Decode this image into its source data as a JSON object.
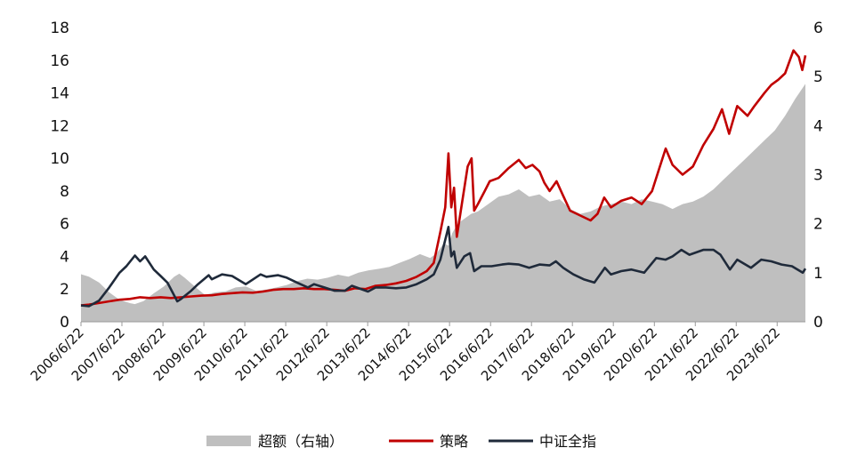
{
  "chart_data": {
    "type": "line",
    "title": "",
    "xlabel": "",
    "ylabel_left": "",
    "ylabel_right": "",
    "ylim_left": [
      0,
      18
    ],
    "ylim_right": [
      0,
      6
    ],
    "left_ticks": [
      "0",
      "2",
      "4",
      "6",
      "8",
      "10",
      "12",
      "14",
      "16",
      "18"
    ],
    "right_ticks": [
      "0",
      "1",
      "2",
      "3",
      "4",
      "5",
      "6"
    ],
    "x_tick_labels": [
      "2006/6/22",
      "2007/6/22",
      "2008/6/22",
      "2009/6/22",
      "2010/6/22",
      "2011/6/22",
      "2012/6/22",
      "2013/6/22",
      "2014/6/22",
      "2015/6/22",
      "2016/6/22",
      "2017/6/22",
      "2018/6/22",
      "2019/6/22",
      "2020/6/22",
      "2021/6/22",
      "2022/6/22",
      "2023/6/22"
    ],
    "x_range": [
      "2006-06-22",
      "2024-02-29"
    ],
    "grid": false,
    "legend_position": "bottom-center",
    "colors": {
      "excess": "#bfbfbf",
      "strategy": "#c00000",
      "index": "#1f2a3a"
    },
    "series": [
      {
        "name": "超额（右轴）",
        "kind": "area",
        "axis": "right",
        "points": [
          [
            "2006-06-22",
            0.97
          ],
          [
            "2006-09-01",
            0.92
          ],
          [
            "2006-12-01",
            0.8
          ],
          [
            "2007-03-01",
            0.6
          ],
          [
            "2007-06-01",
            0.45
          ],
          [
            "2007-09-01",
            0.38
          ],
          [
            "2007-10-15",
            0.36
          ],
          [
            "2008-01-01",
            0.42
          ],
          [
            "2008-04-01",
            0.58
          ],
          [
            "2008-07-01",
            0.72
          ],
          [
            "2008-10-01",
            0.92
          ],
          [
            "2008-11-15",
            0.98
          ],
          [
            "2009-01-01",
            0.9
          ],
          [
            "2009-04-01",
            0.72
          ],
          [
            "2009-07-01",
            0.55
          ],
          [
            "2009-10-01",
            0.6
          ],
          [
            "2010-01-01",
            0.62
          ],
          [
            "2010-04-01",
            0.7
          ],
          [
            "2010-07-01",
            0.72
          ],
          [
            "2010-10-01",
            0.63
          ],
          [
            "2011-01-01",
            0.66
          ],
          [
            "2011-04-01",
            0.7
          ],
          [
            "2011-07-01",
            0.75
          ],
          [
            "2011-10-01",
            0.83
          ],
          [
            "2012-01-01",
            0.88
          ],
          [
            "2012-04-01",
            0.86
          ],
          [
            "2012-07-01",
            0.9
          ],
          [
            "2012-10-01",
            0.96
          ],
          [
            "2013-01-01",
            0.92
          ],
          [
            "2013-04-01",
            1.0
          ],
          [
            "2013-07-01",
            1.05
          ],
          [
            "2013-10-01",
            1.08
          ],
          [
            "2014-01-01",
            1.12
          ],
          [
            "2014-04-01",
            1.2
          ],
          [
            "2014-07-01",
            1.28
          ],
          [
            "2014-10-01",
            1.38
          ],
          [
            "2015-01-01",
            1.3
          ],
          [
            "2015-03-01",
            1.4
          ],
          [
            "2015-05-01",
            1.6
          ],
          [
            "2015-06-15",
            1.55
          ],
          [
            "2015-07-15",
            1.8
          ],
          [
            "2015-09-01",
            2.0
          ],
          [
            "2015-11-01",
            2.1
          ],
          [
            "2016-01-01",
            2.2
          ],
          [
            "2016-03-01",
            2.25
          ],
          [
            "2016-06-01",
            2.4
          ],
          [
            "2016-09-01",
            2.55
          ],
          [
            "2016-12-01",
            2.6
          ],
          [
            "2017-03-01",
            2.7
          ],
          [
            "2017-06-01",
            2.55
          ],
          [
            "2017-09-01",
            2.6
          ],
          [
            "2017-12-01",
            2.45
          ],
          [
            "2018-03-01",
            2.5
          ],
          [
            "2018-06-01",
            2.3
          ],
          [
            "2018-09-01",
            2.2
          ],
          [
            "2018-12-01",
            2.25
          ],
          [
            "2019-03-01",
            2.35
          ],
          [
            "2019-06-01",
            2.4
          ],
          [
            "2019-09-01",
            2.45
          ],
          [
            "2019-12-01",
            2.4
          ],
          [
            "2020-03-01",
            2.5
          ],
          [
            "2020-06-01",
            2.45
          ],
          [
            "2020-09-01",
            2.4
          ],
          [
            "2020-12-01",
            2.3
          ],
          [
            "2021-03-01",
            2.4
          ],
          [
            "2021-06-01",
            2.45
          ],
          [
            "2021-09-01",
            2.55
          ],
          [
            "2021-12-01",
            2.7
          ],
          [
            "2022-03-01",
            2.9
          ],
          [
            "2022-06-01",
            3.1
          ],
          [
            "2022-09-01",
            3.3
          ],
          [
            "2022-12-01",
            3.5
          ],
          [
            "2023-03-01",
            3.7
          ],
          [
            "2023-06-01",
            3.9
          ],
          [
            "2023-09-01",
            4.2
          ],
          [
            "2023-12-01",
            4.55
          ],
          [
            "2024-02-29",
            4.85
          ]
        ]
      },
      {
        "name": "策略",
        "kind": "line",
        "axis": "left",
        "points": [
          [
            "2006-06-22",
            1.0
          ],
          [
            "2006-09-01",
            1.05
          ],
          [
            "2006-12-01",
            1.15
          ],
          [
            "2007-03-01",
            1.25
          ],
          [
            "2007-06-01",
            1.35
          ],
          [
            "2007-09-01",
            1.4
          ],
          [
            "2007-12-01",
            1.5
          ],
          [
            "2008-03-01",
            1.45
          ],
          [
            "2008-06-01",
            1.5
          ],
          [
            "2008-09-01",
            1.45
          ],
          [
            "2008-12-01",
            1.5
          ],
          [
            "2009-03-01",
            1.55
          ],
          [
            "2009-06-01",
            1.6
          ],
          [
            "2009-09-01",
            1.62
          ],
          [
            "2009-12-01",
            1.7
          ],
          [
            "2010-03-01",
            1.75
          ],
          [
            "2010-06-01",
            1.8
          ],
          [
            "2010-09-01",
            1.78
          ],
          [
            "2010-12-01",
            1.85
          ],
          [
            "2011-03-01",
            1.95
          ],
          [
            "2011-06-01",
            2.0
          ],
          [
            "2011-09-01",
            2.0
          ],
          [
            "2011-12-01",
            2.05
          ],
          [
            "2012-03-01",
            2.0
          ],
          [
            "2012-06-01",
            2.0
          ],
          [
            "2012-09-01",
            1.95
          ],
          [
            "2012-12-01",
            1.9
          ],
          [
            "2013-03-01",
            2.05
          ],
          [
            "2013-06-01",
            2.0
          ],
          [
            "2013-09-01",
            2.2
          ],
          [
            "2013-12-01",
            2.25
          ],
          [
            "2014-03-01",
            2.35
          ],
          [
            "2014-06-01",
            2.5
          ],
          [
            "2014-09-01",
            2.75
          ],
          [
            "2014-12-01",
            3.1
          ],
          [
            "2015-02-01",
            3.6
          ],
          [
            "2015-04-01",
            5.5
          ],
          [
            "2015-05-15",
            7.0
          ],
          [
            "2015-06-12",
            10.3
          ],
          [
            "2015-07-08",
            7.0
          ],
          [
            "2015-08-01",
            8.2
          ],
          [
            "2015-08-26",
            5.2
          ],
          [
            "2015-10-01",
            6.8
          ],
          [
            "2015-12-01",
            9.5
          ],
          [
            "2016-01-05",
            10.0
          ],
          [
            "2016-01-28",
            6.8
          ],
          [
            "2016-03-01",
            7.2
          ],
          [
            "2016-05-01",
            8.0
          ],
          [
            "2016-06-15",
            8.6
          ],
          [
            "2016-09-01",
            8.8
          ],
          [
            "2016-12-01",
            9.4
          ],
          [
            "2017-03-01",
            9.9
          ],
          [
            "2017-05-01",
            9.4
          ],
          [
            "2017-07-01",
            9.6
          ],
          [
            "2017-09-01",
            9.2
          ],
          [
            "2017-10-15",
            8.5
          ],
          [
            "2017-12-01",
            8.0
          ],
          [
            "2018-02-01",
            8.6
          ],
          [
            "2018-04-01",
            7.7
          ],
          [
            "2018-06-01",
            6.8
          ],
          [
            "2018-09-01",
            6.5
          ],
          [
            "2018-12-01",
            6.2
          ],
          [
            "2019-02-01",
            6.6
          ],
          [
            "2019-04-01",
            7.6
          ],
          [
            "2019-06-01",
            7.0
          ],
          [
            "2019-09-01",
            7.4
          ],
          [
            "2019-12-01",
            7.6
          ],
          [
            "2020-03-01",
            7.2
          ],
          [
            "2020-06-01",
            8.0
          ],
          [
            "2020-08-01",
            9.3
          ],
          [
            "2020-10-01",
            10.6
          ],
          [
            "2020-12-01",
            9.6
          ],
          [
            "2021-03-01",
            9.0
          ],
          [
            "2021-06-01",
            9.5
          ],
          [
            "2021-09-01",
            10.8
          ],
          [
            "2021-12-01",
            11.8
          ],
          [
            "2022-02-15",
            13.0
          ],
          [
            "2022-04-20",
            11.5
          ],
          [
            "2022-07-01",
            13.2
          ],
          [
            "2022-10-01",
            12.6
          ],
          [
            "2022-12-01",
            13.2
          ],
          [
            "2023-03-01",
            14.0
          ],
          [
            "2023-05-01",
            14.5
          ],
          [
            "2023-07-01",
            14.8
          ],
          [
            "2023-09-01",
            15.2
          ],
          [
            "2023-11-15",
            16.6
          ],
          [
            "2024-01-01",
            16.2
          ],
          [
            "2024-02-01",
            15.4
          ],
          [
            "2024-02-29",
            16.3
          ]
        ]
      },
      {
        "name": "中证全指",
        "kind": "line",
        "axis": "left",
        "points": [
          [
            "2006-06-22",
            1.0
          ],
          [
            "2006-09-01",
            0.95
          ],
          [
            "2006-12-01",
            1.3
          ],
          [
            "2007-03-01",
            2.1
          ],
          [
            "2007-06-01",
            3.0
          ],
          [
            "2007-08-01",
            3.4
          ],
          [
            "2007-10-16",
            4.05
          ],
          [
            "2007-12-01",
            3.7
          ],
          [
            "2008-01-15",
            4.0
          ],
          [
            "2008-04-01",
            3.2
          ],
          [
            "2008-06-01",
            2.8
          ],
          [
            "2008-08-01",
            2.4
          ],
          [
            "2008-10-28",
            1.25
          ],
          [
            "2008-12-01",
            1.4
          ],
          [
            "2009-03-01",
            1.9
          ],
          [
            "2009-05-01",
            2.3
          ],
          [
            "2009-08-04",
            2.85
          ],
          [
            "2009-09-01",
            2.6
          ],
          [
            "2009-12-01",
            2.9
          ],
          [
            "2010-03-01",
            2.8
          ],
          [
            "2010-07-01",
            2.3
          ],
          [
            "2010-11-10",
            2.9
          ],
          [
            "2011-01-01",
            2.75
          ],
          [
            "2011-04-15",
            2.85
          ],
          [
            "2011-07-01",
            2.7
          ],
          [
            "2011-10-01",
            2.4
          ],
          [
            "2012-01-06",
            2.1
          ],
          [
            "2012-03-01",
            2.3
          ],
          [
            "2012-06-01",
            2.1
          ],
          [
            "2012-09-01",
            1.9
          ],
          [
            "2012-12-01",
            1.9
          ],
          [
            "2013-02-01",
            2.2
          ],
          [
            "2013-06-25",
            1.85
          ],
          [
            "2013-09-01",
            2.1
          ],
          [
            "2013-12-01",
            2.1
          ],
          [
            "2014-03-01",
            2.05
          ],
          [
            "2014-06-01",
            2.1
          ],
          [
            "2014-09-01",
            2.3
          ],
          [
            "2014-12-01",
            2.6
          ],
          [
            "2015-02-01",
            2.9
          ],
          [
            "2015-04-01",
            3.8
          ],
          [
            "2015-06-12",
            5.8
          ],
          [
            "2015-07-08",
            4.0
          ],
          [
            "2015-08-01",
            4.3
          ],
          [
            "2015-08-26",
            3.3
          ],
          [
            "2015-11-01",
            4.0
          ],
          [
            "2015-12-22",
            4.2
          ],
          [
            "2016-01-28",
            3.1
          ],
          [
            "2016-04-01",
            3.4
          ],
          [
            "2016-07-01",
            3.4
          ],
          [
            "2016-10-01",
            3.5
          ],
          [
            "2016-12-01",
            3.55
          ],
          [
            "2017-03-01",
            3.5
          ],
          [
            "2017-06-01",
            3.3
          ],
          [
            "2017-09-01",
            3.5
          ],
          [
            "2017-12-01",
            3.45
          ],
          [
            "2018-01-25",
            3.7
          ],
          [
            "2018-04-01",
            3.3
          ],
          [
            "2018-07-01",
            2.9
          ],
          [
            "2018-10-01",
            2.6
          ],
          [
            "2019-01-04",
            2.4
          ],
          [
            "2019-04-08",
            3.3
          ],
          [
            "2019-06-01",
            2.9
          ],
          [
            "2019-09-01",
            3.1
          ],
          [
            "2019-12-01",
            3.2
          ],
          [
            "2020-03-23",
            3.0
          ],
          [
            "2020-07-09",
            3.9
          ],
          [
            "2020-10-01",
            3.8
          ],
          [
            "2020-12-01",
            4.0
          ],
          [
            "2021-02-18",
            4.4
          ],
          [
            "2021-05-01",
            4.1
          ],
          [
            "2021-09-01",
            4.4
          ],
          [
            "2021-12-01",
            4.4
          ],
          [
            "2022-02-01",
            4.1
          ],
          [
            "2022-04-27",
            3.2
          ],
          [
            "2022-07-01",
            3.8
          ],
          [
            "2022-10-31",
            3.3
          ],
          [
            "2023-01-31",
            3.8
          ],
          [
            "2023-05-01",
            3.7
          ],
          [
            "2023-08-01",
            3.5
          ],
          [
            "2023-11-01",
            3.4
          ],
          [
            "2024-02-05",
            3.0
          ],
          [
            "2024-02-29",
            3.25
          ]
        ]
      }
    ]
  }
}
